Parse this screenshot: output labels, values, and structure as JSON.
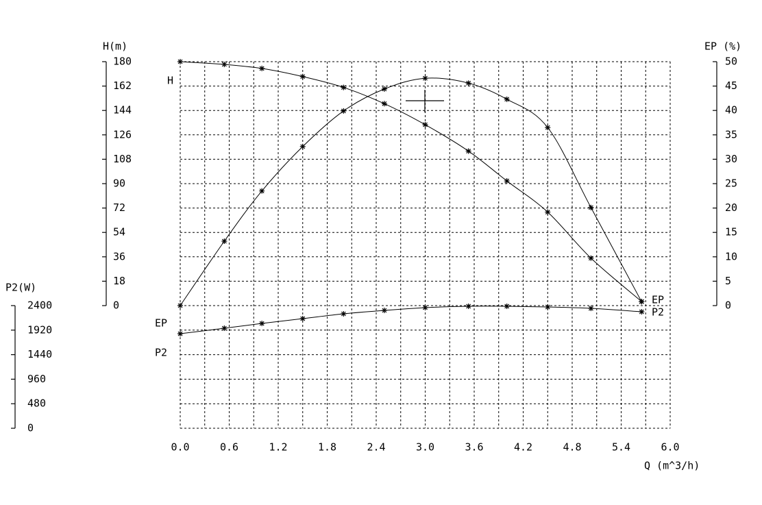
{
  "chart_data": {
    "type": "line",
    "x_label": "Q (m^3/h)",
    "y_label": "H(m)",
    "y2_label": "EP (%)",
    "y3_label": "P2(W)",
    "xlim": [
      0,
      6
    ],
    "xticks": [
      {
        "value": 0,
        "label": "0.0"
      },
      0.6,
      1.2,
      1.8,
      2.4,
      {
        "value": 3,
        "label": "3.0"
      },
      3.6,
      4.2,
      4.8,
      5.4,
      {
        "value": 6,
        "label": "6.0"
      }
    ],
    "ylim": [
      0,
      180
    ],
    "yticks": [
      0,
      18,
      36,
      54,
      72,
      90,
      108,
      126,
      144,
      162,
      180
    ],
    "y2lim": [
      0,
      50
    ],
    "y2ticks": [
      0,
      5,
      10,
      15,
      20,
      25,
      30,
      35,
      40,
      45,
      50
    ],
    "y3lim": [
      0,
      2400
    ],
    "y3ticks": [
      0,
      480,
      960,
      1440,
      1920,
      2400
    ],
    "grid": true,
    "x": [
      0,
      0.54,
      1.0,
      1.5,
      2.0,
      2.5,
      3.0,
      3.53,
      4.0,
      4.5,
      5.03,
      5.65
    ],
    "series": [
      {
        "name": "H",
        "color": "#000000",
        "values": [
          180,
          178,
          175,
          169,
          161,
          149,
          133.5,
          114,
          92,
          69,
          35,
          3
        ]
      },
      {
        "name": "EP",
        "color": "#000000",
        "axis": "y2",
        "values": [
          0,
          13.2,
          23.5,
          32.6,
          39.9,
          44.4,
          46.6,
          45.6,
          42.3,
          36.5,
          20.1,
          0.8
        ]
      },
      {
        "name": "P2",
        "color": "#000000",
        "axis": "y3",
        "values": [
          1850,
          1957,
          2051,
          2145,
          2239,
          2306,
          2360,
          2387,
          2387,
          2373,
          2346,
          2279
        ]
      }
    ]
  }
}
